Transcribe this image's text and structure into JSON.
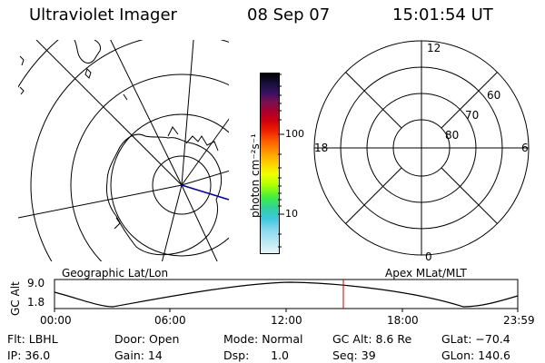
{
  "header": {
    "instrument": "Ultraviolet Imager",
    "date": "08 Sep 07",
    "time": "15:01:54 UT"
  },
  "colorbar": {
    "unit_label": "photon cm⁻²s⁻¹",
    "ticks": [
      "100",
      "10"
    ]
  },
  "polar_plot": {
    "mlt_labels": {
      "top": "12",
      "left": "18",
      "right": "6",
      "bottom": "0"
    },
    "lat_labels": [
      "60",
      "70",
      "80"
    ]
  },
  "panel_labels": {
    "left": "Geographic Lat/Lon",
    "right": "Apex MLat/MLT"
  },
  "altitude_plot": {
    "ylabel": "GC Alt",
    "yticks": [
      "9.0",
      "1.8"
    ],
    "xticks": [
      "00:00",
      "06:00",
      "12:00",
      "18:00",
      "23:59"
    ],
    "marker_time": "15:01:54"
  },
  "status": {
    "flt": "Flt: LBHL",
    "door": "Door: Open",
    "mode": "Mode: Normal",
    "gc_alt": "GC Alt: 8.6 Re",
    "glat": "GLat: −70.4",
    "ip": "IP: 36.0",
    "gain": "Gain: 14",
    "dsp": "Dsp:      1.0",
    "seq": "Seq: 39",
    "glon": "GLon: 140.6"
  },
  "colors": {
    "marker": "#cc0000",
    "magnetic_pole_line": "#0000aa"
  }
}
